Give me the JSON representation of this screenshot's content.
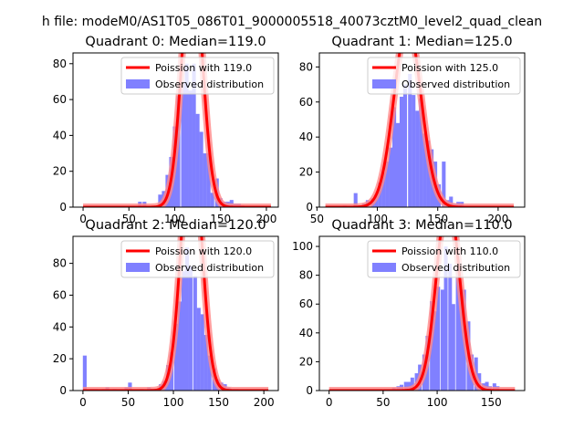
{
  "figure_title": "h file: modeM0/AS1T05_086T01_9000005518_40073cztM0_level2_quad_clean",
  "colors": {
    "bar": "#8080ff",
    "curve": "#ff0000",
    "curve_glow": "#ff8888",
    "axis": "#000000"
  },
  "chart_data": [
    {
      "type": "bar",
      "title": "Quadrant 0: Median=119.0",
      "xlabel": "",
      "ylabel": "",
      "xlim": [
        -11,
        213
      ],
      "ylim": [
        0,
        86
      ],
      "xticks": [
        0,
        50,
        100,
        150,
        200
      ],
      "yticks": [
        0,
        20,
        40,
        60,
        80
      ],
      "bar_width": 4.1,
      "bars": {
        "x": [
          62,
          67,
          84,
          88,
          92,
          96,
          100,
          104,
          109,
          113,
          117,
          121,
          125,
          129,
          133,
          137,
          141,
          146,
          150,
          154,
          158,
          162,
          166,
          170,
          174
        ],
        "y": [
          3,
          3,
          7,
          9,
          18,
          28,
          45,
          62,
          70,
          80,
          65,
          80,
          52,
          42,
          30,
          30,
          8,
          16,
          5,
          3,
          3,
          4,
          2,
          2,
          1
        ]
      },
      "curve": {
        "mean": 119.0,
        "sigma": 10.91,
        "n": 944,
        "binw": 4.1,
        "x0": 0,
        "x1": 205
      },
      "legend": {
        "position": "top-right",
        "entries": [
          "Poission with 119.0",
          "Observed distribution"
        ]
      }
    },
    {
      "type": "bar",
      "title": "Quadrant 1: Median=125.0",
      "xlabel": "",
      "ylabel": "",
      "xlim": [
        52,
        222
      ],
      "ylim": [
        0,
        88
      ],
      "xticks": [
        50,
        100,
        150,
        200
      ],
      "yticks": [
        0,
        20,
        40,
        60,
        80
      ],
      "bar_width": 3.1,
      "bars": {
        "x": [
          73,
          82,
          86,
          89,
          92,
          96,
          99,
          102,
          105,
          108,
          111,
          114,
          117,
          120,
          123,
          127,
          130,
          133,
          136,
          139,
          142,
          145,
          148,
          151,
          155,
          158,
          161,
          164,
          167,
          170
        ],
        "y": [
          1,
          8,
          1,
          2,
          4,
          5,
          7,
          14,
          20,
          26,
          34,
          57,
          48,
          63,
          70,
          76,
          64,
          55,
          62,
          42,
          38,
          33,
          26,
          13,
          26,
          4,
          6,
          2,
          3,
          3
        ]
      },
      "curve": {
        "mean": 125.0,
        "sigma": 11.18,
        "n": 945,
        "binw": 3.1,
        "x0": 57,
        "x1": 213
      },
      "legend": {
        "position": "top-right",
        "entries": [
          "Poission with 125.0",
          "Observed distribution"
        ]
      }
    },
    {
      "type": "bar",
      "title": "Quadrant 2: Median=120.0",
      "xlabel": "",
      "ylabel": "",
      "xlim": [
        -11,
        216
      ],
      "ylim": [
        0,
        97
      ],
      "xticks": [
        0,
        50,
        100,
        150,
        200
      ],
      "yticks": [
        0,
        20,
        40,
        60,
        80
      ],
      "bar_width": 4.2,
      "bars": {
        "x": [
          2,
          10,
          14,
          23,
          27,
          35,
          48,
          52,
          65,
          73,
          77,
          86,
          90,
          94,
          98,
          103,
          107,
          111,
          115,
          119,
          124,
          128,
          132,
          136,
          140,
          145,
          149,
          153,
          157,
          161,
          166,
          170
        ],
        "y": [
          22,
          1,
          1,
          1,
          2,
          1,
          2,
          5,
          1,
          2,
          1,
          4,
          6,
          16,
          24,
          42,
          56,
          75,
          90,
          78,
          72,
          52,
          48,
          35,
          22,
          14,
          7,
          5,
          4,
          2,
          1,
          1
        ]
      },
      "curve": {
        "mean": 120.0,
        "sigma": 10.95,
        "n": 1065,
        "binw": 4.2,
        "x0": 0,
        "x1": 205
      },
      "legend": {
        "position": "top-right",
        "entries": [
          "Poission with 120.0",
          "Observed distribution"
        ]
      }
    },
    {
      "type": "bar",
      "title": "Quadrant 3: Median=110.0",
      "xlabel": "",
      "ylabel": "",
      "xlim": [
        -9,
        181
      ],
      "ylim": [
        0,
        107
      ],
      "xticks": [
        0,
        50,
        100,
        150
      ],
      "yticks": [
        0,
        20,
        40,
        60,
        80,
        100
      ],
      "bar_width": 3.4,
      "bars": {
        "x": [
          60,
          64,
          67,
          71,
          74,
          77,
          81,
          84,
          88,
          91,
          95,
          98,
          101,
          105,
          108,
          112,
          115,
          119,
          122,
          125,
          129,
          132,
          136,
          139,
          143,
          146,
          149,
          153,
          156,
          160
        ],
        "y": [
          2,
          3,
          4,
          6,
          6,
          9,
          12,
          18,
          25,
          38,
          62,
          55,
          72,
          70,
          100,
          88,
          60,
          85,
          70,
          70,
          48,
          25,
          23,
          12,
          5,
          6,
          3,
          5,
          3,
          1
        ]
      },
      "curve": {
        "mean": 110.0,
        "sigma": 10.49,
        "n": 1040,
        "binw": 3.4,
        "x0": 0,
        "x1": 172
      },
      "legend": {
        "position": "top-right",
        "entries": [
          "Poission with 110.0",
          "Observed distribution"
        ]
      }
    }
  ]
}
